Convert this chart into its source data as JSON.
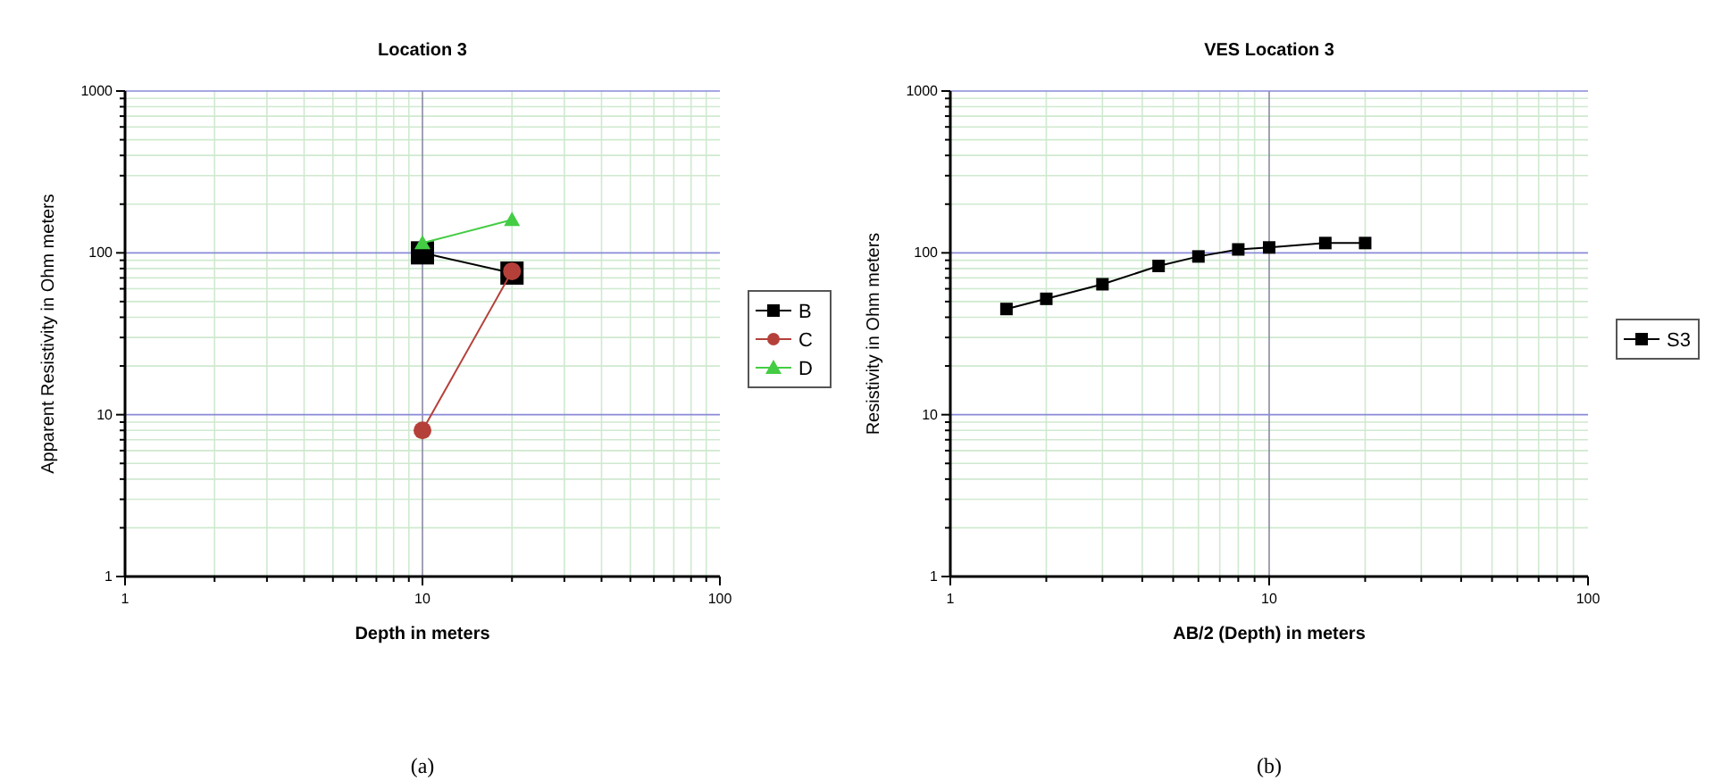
{
  "chart_data": [
    {
      "type": "line",
      "title": "Location 3",
      "xlabel": "Depth in meters",
      "ylabel": "Apparent Resistivity in Ohm meters",
      "log": "xy",
      "grid": true,
      "legend": "right",
      "xlim": [
        1,
        100
      ],
      "xticks": [
        1,
        10,
        100
      ],
      "ylim": [
        1,
        1000
      ],
      "yticks": [
        1,
        10,
        100,
        1000
      ],
      "annotations": [
        "(a)"
      ],
      "ref_lines": [
        {
          "axis": "x",
          "value": 10,
          "color": "#8a8aa0"
        }
      ],
      "series": [
        {
          "name": "B",
          "color": "#000000",
          "marker": "square",
          "x": [
            10,
            20
          ],
          "values": [
            100,
            75
          ]
        },
        {
          "name": "C",
          "color": "#b5403a",
          "marker": "circle",
          "x": [
            10,
            20
          ],
          "values": [
            8,
            77
          ]
        },
        {
          "name": "D",
          "color": "#44cc44",
          "marker": "triangle",
          "x": [
            10,
            20
          ],
          "values": [
            115,
            160
          ]
        }
      ]
    },
    {
      "type": "line",
      "title": "VES Location 3",
      "xlabel": "AB/2 (Depth) in meters",
      "ylabel": "Resistivity in Ohm meters",
      "log": "xy",
      "grid": true,
      "legend": "right",
      "xlim": [
        1,
        100
      ],
      "xticks": [
        1,
        10,
        100
      ],
      "ylim": [
        1,
        1000
      ],
      "yticks": [
        1,
        10,
        100,
        1000
      ],
      "annotations": [
        "(b)"
      ],
      "ref_lines": [
        {
          "axis": "x",
          "value": 10,
          "color": "#8a8aa0"
        }
      ],
      "series": [
        {
          "name": "S3",
          "color": "#000000",
          "marker": "square",
          "x": [
            1.5,
            2,
            3,
            4.5,
            6,
            8,
            10,
            15,
            20
          ],
          "values": [
            45,
            52,
            64,
            83,
            95,
            105,
            108,
            115,
            115
          ]
        }
      ]
    }
  ]
}
